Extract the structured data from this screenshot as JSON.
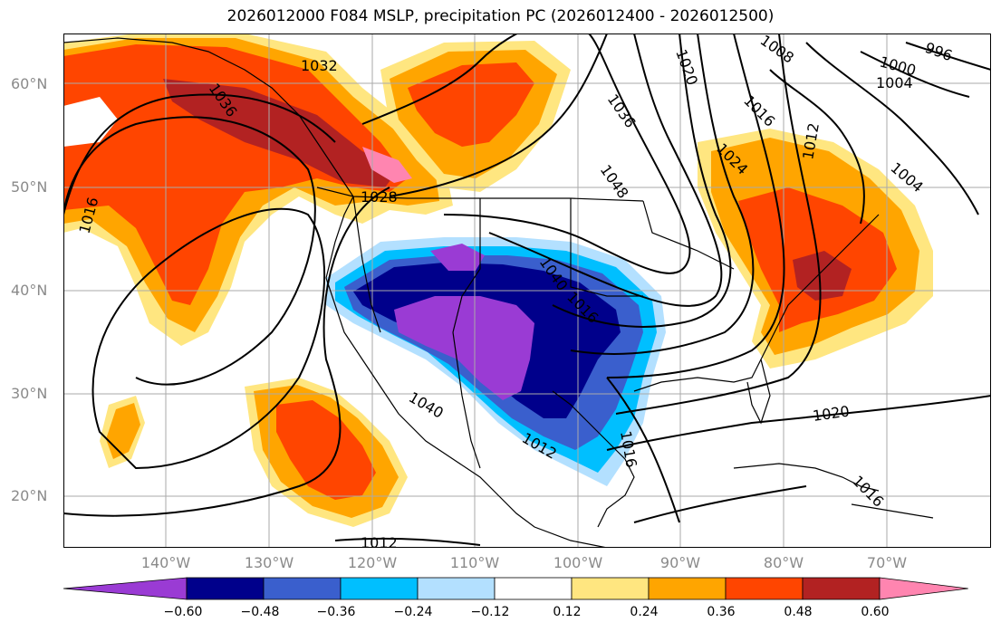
{
  "title": "2026012000 F084 MSLP, precipitation PC (2026012400 - 2026012500)",
  "lat_labels": [
    "60°N",
    "50°N",
    "40°N",
    "30°N",
    "20°N"
  ],
  "lon_labels": [
    "140°W",
    "130°W",
    "120°W",
    "110°W",
    "100°W",
    "90°W",
    "80°W",
    "70°W"
  ],
  "colorbar": {
    "ticks": [
      "−0.60",
      "−0.48",
      "−0.36",
      "−0.24",
      "−0.12",
      "0.12",
      "0.24",
      "0.36",
      "0.48",
      "0.60"
    ],
    "colors": [
      "#9a3bd4",
      "#00008b",
      "#3a5fcd",
      "#00bfff",
      "#b3e0ff",
      "#ffffff",
      "#ffe680",
      "#ffa500",
      "#ff4500",
      "#b22222",
      "#ff85b0"
    ]
  },
  "isobar_labels": [
    "1032",
    "1036",
    "1016",
    "1028",
    "1040",
    "1036",
    "1020",
    "1008",
    "1000",
    "996",
    "1004",
    "1016",
    "1024",
    "1012",
    "1004",
    "1048",
    "1040",
    "1012",
    "1016",
    "1016",
    "1020",
    "1016",
    "1012"
  ],
  "colors": {
    "land_border": "#000000",
    "grid": "#aaaaaa",
    "isobar": "#000000"
  }
}
